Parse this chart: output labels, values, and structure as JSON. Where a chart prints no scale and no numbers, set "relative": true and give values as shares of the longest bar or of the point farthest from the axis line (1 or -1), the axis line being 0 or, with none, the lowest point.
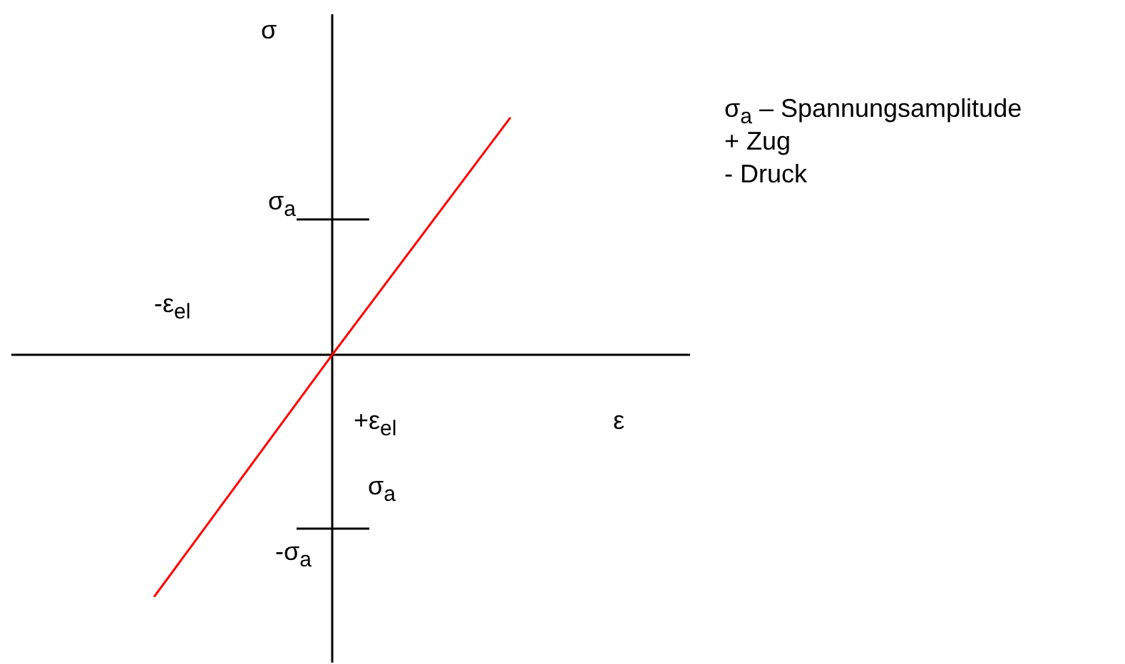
{
  "chart_data": {
    "type": "line",
    "relative": true,
    "marker": "none",
    "categories": [
      null,
      null,
      null
    ],
    "series": [
      {
        "color": "#ff0000",
        "values": [
          -1,
          0,
          0.98
        ]
      }
    ],
    "annotations": [
      "σ",
      "σ$_{a}$",
      "-ε$_{el}$",
      "+ε$_{el}$",
      "ε",
      "σ$_{a}$",
      "-σ$_{a}$",
      "σ$_{a}$ – Spannungsamplitude",
      "+ Zug",
      "- Druck"
    ]
  }
}
